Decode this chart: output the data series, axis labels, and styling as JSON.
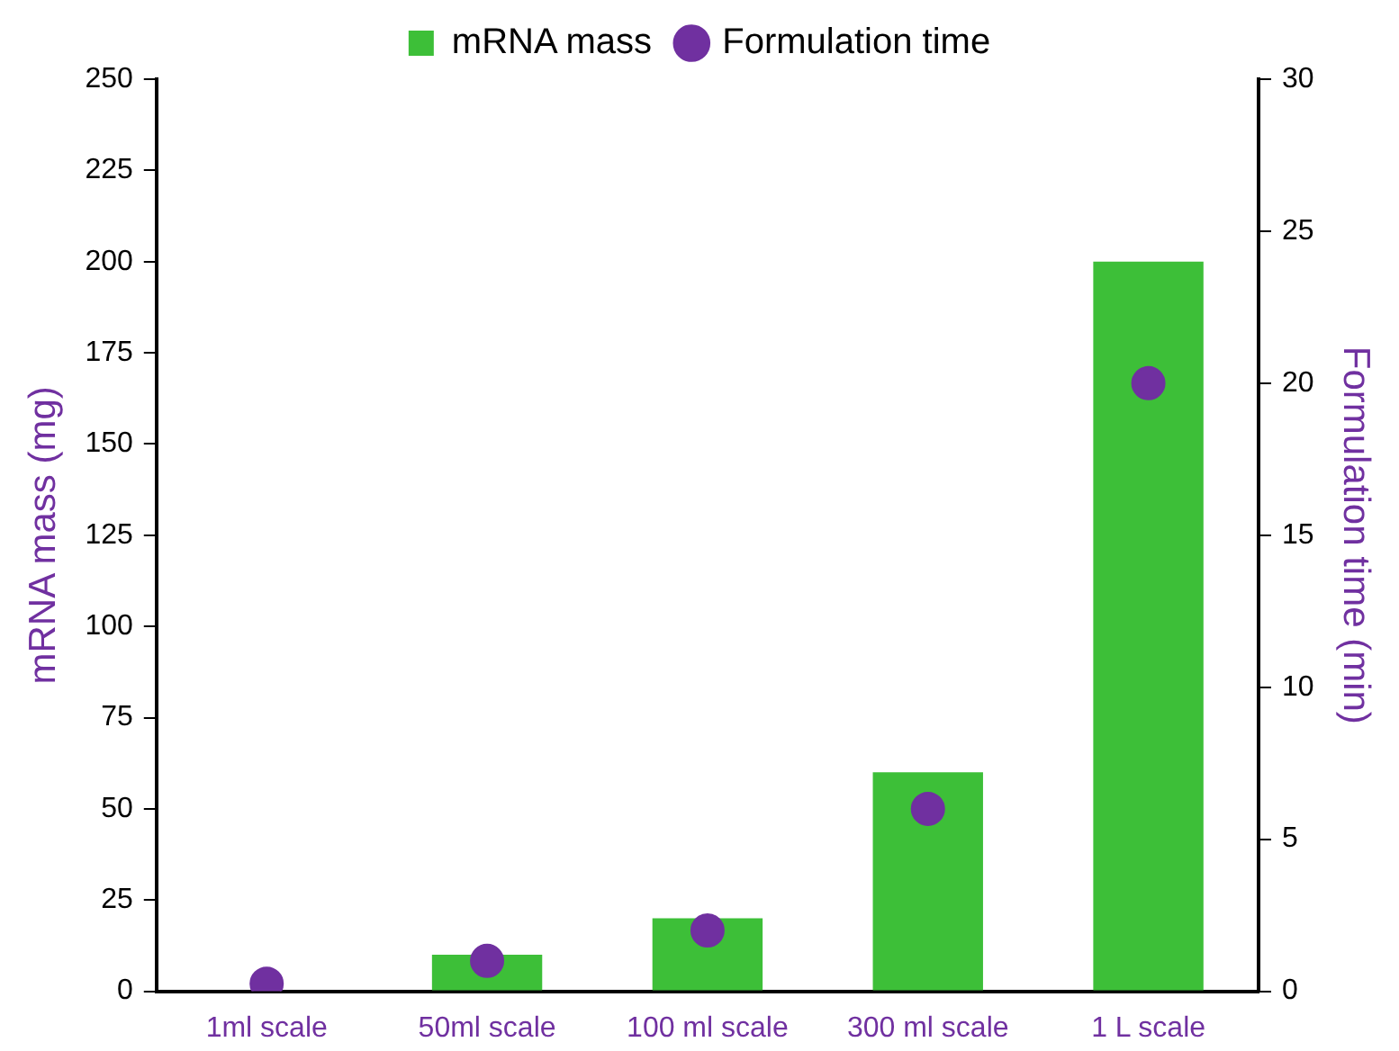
{
  "chart_data": {
    "type": "bar",
    "categories": [
      "1ml scale",
      "50ml scale",
      "100 ml scale",
      "300 ml scale",
      "1 L scale"
    ],
    "series": [
      {
        "name": "mRNA mass",
        "type": "bar",
        "color": "#3dbf38",
        "values": [
          0,
          10,
          20,
          60,
          200
        ]
      },
      {
        "name": "Formulation time",
        "type": "scatter",
        "axis": "y2",
        "color": "#7030a0",
        "values": [
          0.25,
          1,
          2,
          6,
          20
        ]
      }
    ],
    "ylabel": "mRNA mass (mg)",
    "y2label": "Formulation time (min)",
    "ylim": [
      0,
      250
    ],
    "yticks": [
      0,
      25,
      50,
      75,
      100,
      125,
      150,
      175,
      200,
      225,
      250
    ],
    "y2lim": [
      0,
      30
    ],
    "y2ticks": [
      0,
      5,
      10,
      15,
      20,
      25,
      30
    ],
    "grid": false,
    "legend": "top",
    "marker": "circle"
  }
}
